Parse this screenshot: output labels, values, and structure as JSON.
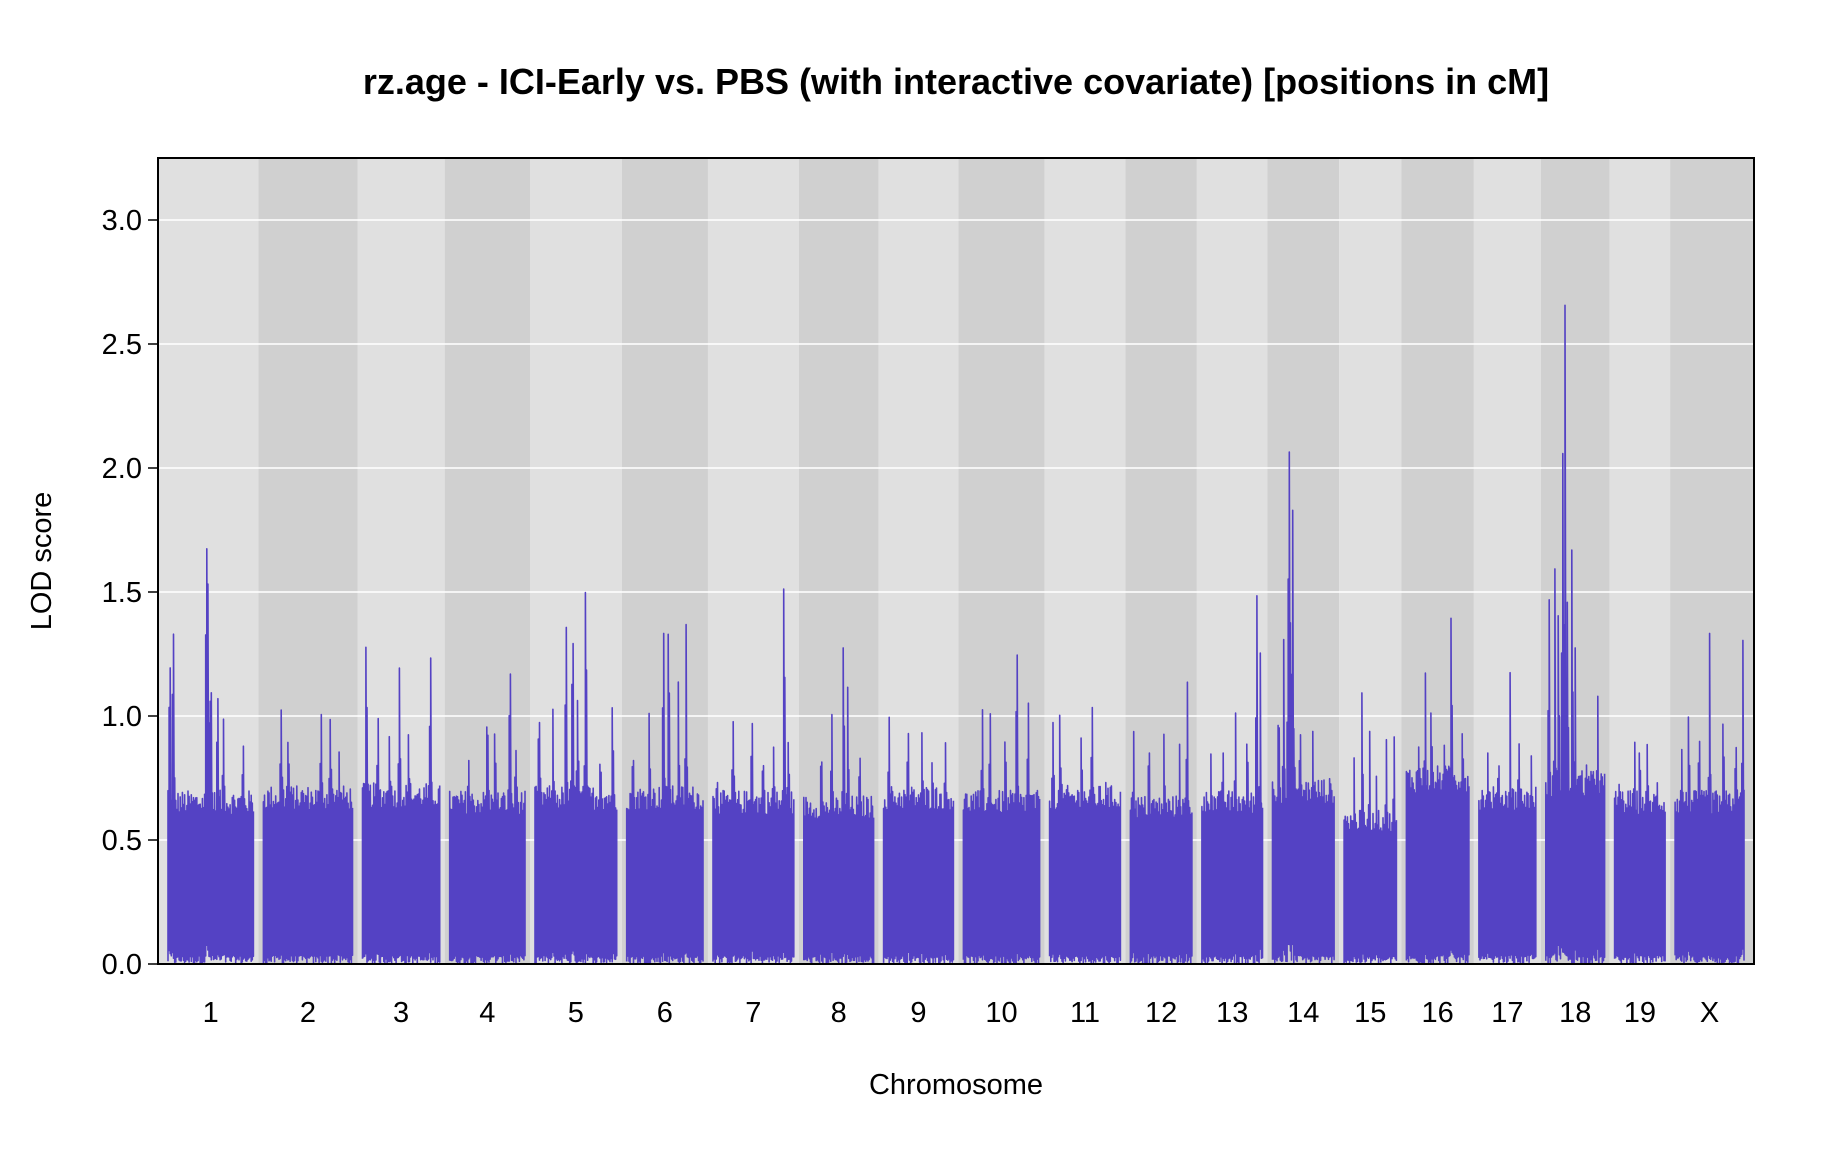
{
  "chart_data": {
    "type": "line",
    "title": "rz.age - ICI-Early vs. PBS (with interactive covariate) [positions in cM]",
    "xlabel": "Chromosome",
    "ylabel": "LOD score",
    "ylim": [
      0,
      3.25
    ],
    "y_ticks": [
      "0.0",
      "0.5",
      "1.0",
      "1.5",
      "2.0",
      "2.5",
      "3.0"
    ],
    "grid": "horizontal",
    "legend": "none",
    "colors": {
      "line": "#5442c4",
      "band_light": "#e0e0e0",
      "band_dark": "#d0d0d0",
      "gridline": "#ffffff",
      "frame": "#000000"
    },
    "chromosomes": [
      {
        "name": "1",
        "len": 93,
        "base": 0.7,
        "peaks": [
          [
            0.02,
            1.25
          ],
          [
            0.06,
            1.38
          ],
          [
            0.45,
            1.79
          ],
          [
            0.47,
            1.62
          ],
          [
            0.5,
            1.3
          ],
          [
            0.58,
            1.1
          ],
          [
            0.65,
            1.05
          ],
          [
            0.88,
            0.92
          ]
        ]
      },
      {
        "name": "2",
        "len": 97,
        "base": 0.72,
        "peaks": [
          [
            0.2,
            1.07
          ],
          [
            0.28,
            0.95
          ],
          [
            0.65,
            1.04
          ],
          [
            0.75,
            1.06
          ],
          [
            0.85,
            0.88
          ]
        ]
      },
      {
        "name": "3",
        "len": 84,
        "base": 0.73,
        "peaks": [
          [
            0.05,
            1.28
          ],
          [
            0.2,
            1.02
          ],
          [
            0.35,
            1.05
          ],
          [
            0.48,
            1.34
          ],
          [
            0.6,
            0.95
          ],
          [
            0.88,
            1.24
          ]
        ]
      },
      {
        "name": "4",
        "len": 82,
        "base": 0.7,
        "peaks": [
          [
            0.25,
            0.9
          ],
          [
            0.5,
            1.17
          ],
          [
            0.6,
            1.06
          ],
          [
            0.8,
            1.3
          ],
          [
            0.88,
            0.95
          ]
        ]
      },
      {
        "name": "5",
        "len": 89,
        "base": 0.72,
        "peaks": [
          [
            0.05,
            1.07
          ],
          [
            0.22,
            1.04
          ],
          [
            0.38,
            1.4
          ],
          [
            0.46,
            1.38
          ],
          [
            0.52,
            1.22
          ],
          [
            0.62,
            1.68
          ],
          [
            0.8,
            0.92
          ],
          [
            0.95,
            1.05
          ]
        ]
      },
      {
        "name": "6",
        "len": 83,
        "base": 0.72,
        "peaks": [
          [
            0.08,
            0.9
          ],
          [
            0.3,
            1.05
          ],
          [
            0.48,
            1.45
          ],
          [
            0.55,
            1.51
          ],
          [
            0.68,
            1.16
          ],
          [
            0.78,
            1.4
          ]
        ]
      },
      {
        "name": "7",
        "len": 88,
        "base": 0.7,
        "peaks": [
          [
            0.05,
            0.84
          ],
          [
            0.25,
            1.04
          ],
          [
            0.48,
            1.09
          ],
          [
            0.62,
            0.9
          ],
          [
            0.75,
            0.92
          ],
          [
            0.88,
            1.55
          ],
          [
            0.93,
            1.02
          ]
        ]
      },
      {
        "name": "8",
        "len": 76,
        "base": 0.68,
        "peaks": [
          [
            0.25,
            0.94
          ],
          [
            0.4,
            1.01
          ],
          [
            0.57,
            1.35
          ],
          [
            0.63,
            1.21
          ],
          [
            0.8,
            0.84
          ]
        ]
      },
      {
        "name": "9",
        "len": 76,
        "base": 0.72,
        "peaks": [
          [
            0.08,
            1.05
          ],
          [
            0.35,
            0.98
          ],
          [
            0.55,
            0.95
          ],
          [
            0.7,
            0.92
          ],
          [
            0.88,
            0.9
          ]
        ]
      },
      {
        "name": "10",
        "len": 83,
        "base": 0.7,
        "peaks": [
          [
            0.25,
            1.07
          ],
          [
            0.35,
            1.07
          ],
          [
            0.55,
            0.93
          ],
          [
            0.7,
            1.3
          ],
          [
            0.85,
            1.13
          ]
        ]
      },
      {
        "name": "11",
        "len": 77,
        "base": 0.72,
        "peaks": [
          [
            0.05,
            1.07
          ],
          [
            0.15,
            1.03
          ],
          [
            0.45,
            1.03
          ],
          [
            0.6,
            1.07
          ],
          [
            0.8,
            0.8
          ]
        ]
      },
      {
        "name": "12",
        "len": 67,
        "base": 0.68,
        "peaks": [
          [
            0.05,
            1.07
          ],
          [
            0.3,
            1.05
          ],
          [
            0.55,
            0.95
          ],
          [
            0.8,
            1.02
          ],
          [
            0.92,
            1.17
          ]
        ]
      },
      {
        "name": "13",
        "len": 66,
        "base": 0.7,
        "peaks": [
          [
            0.15,
            0.98
          ],
          [
            0.35,
            0.95
          ],
          [
            0.55,
            1.06
          ],
          [
            0.75,
            1.05
          ],
          [
            0.9,
            1.57
          ],
          [
            0.96,
            1.35
          ]
        ]
      },
      {
        "name": "14",
        "len": 67,
        "base": 0.75,
        "peaks": [
          [
            0.1,
            1.38
          ],
          [
            0.18,
            1.45
          ],
          [
            0.25,
            1.7
          ],
          [
            0.28,
            2.19
          ],
          [
            0.32,
            1.85
          ],
          [
            0.35,
            1.1
          ],
          [
            0.45,
            1.04
          ],
          [
            0.65,
            0.96
          ]
        ]
      },
      {
        "name": "15",
        "len": 57,
        "base": 0.62,
        "peaks": [
          [
            0.2,
            0.85
          ],
          [
            0.35,
            1.16
          ],
          [
            0.48,
            0.95
          ],
          [
            0.62,
            0.85
          ],
          [
            0.8,
            0.95
          ],
          [
            0.95,
            0.93
          ]
        ]
      },
      {
        "name": "16",
        "len": 68,
        "base": 0.8,
        "peaks": [
          [
            0.2,
            0.97
          ],
          [
            0.3,
            1.31
          ],
          [
            0.4,
            1.03
          ],
          [
            0.6,
            0.97
          ],
          [
            0.72,
            1.58
          ],
          [
            0.9,
            1.07
          ]
        ]
      },
      {
        "name": "17",
        "len": 62,
        "base": 0.72,
        "peaks": [
          [
            0.15,
            0.88
          ],
          [
            0.35,
            0.92
          ],
          [
            0.55,
            1.27
          ],
          [
            0.7,
            0.98
          ],
          [
            0.92,
            0.85
          ]
        ]
      },
      {
        "name": "18",
        "len": 64,
        "base": 0.78,
        "peaks": [
          [
            0.05,
            1.52
          ],
          [
            0.15,
            1.65
          ],
          [
            0.22,
            1.58
          ],
          [
            0.28,
            2.2
          ],
          [
            0.32,
            2.74
          ],
          [
            0.37,
            1.6
          ],
          [
            0.45,
            1.84
          ],
          [
            0.5,
            1.38
          ],
          [
            0.7,
            0.9
          ],
          [
            0.88,
            1.23
          ]
        ]
      },
      {
        "name": "19",
        "len": 55,
        "base": 0.7,
        "peaks": [
          [
            0.1,
            0.88
          ],
          [
            0.4,
            1.02
          ],
          [
            0.5,
            1.1
          ],
          [
            0.65,
            0.92
          ],
          [
            0.85,
            0.78
          ]
        ]
      },
      {
        "name": "X",
        "len": 75,
        "base": 0.7,
        "peaks": [
          [
            0.1,
            0.93
          ],
          [
            0.2,
            1.07
          ],
          [
            0.35,
            1.0
          ],
          [
            0.5,
            1.36
          ],
          [
            0.7,
            0.98
          ],
          [
            0.88,
            1.0
          ],
          [
            0.98,
            1.34
          ]
        ]
      }
    ]
  }
}
